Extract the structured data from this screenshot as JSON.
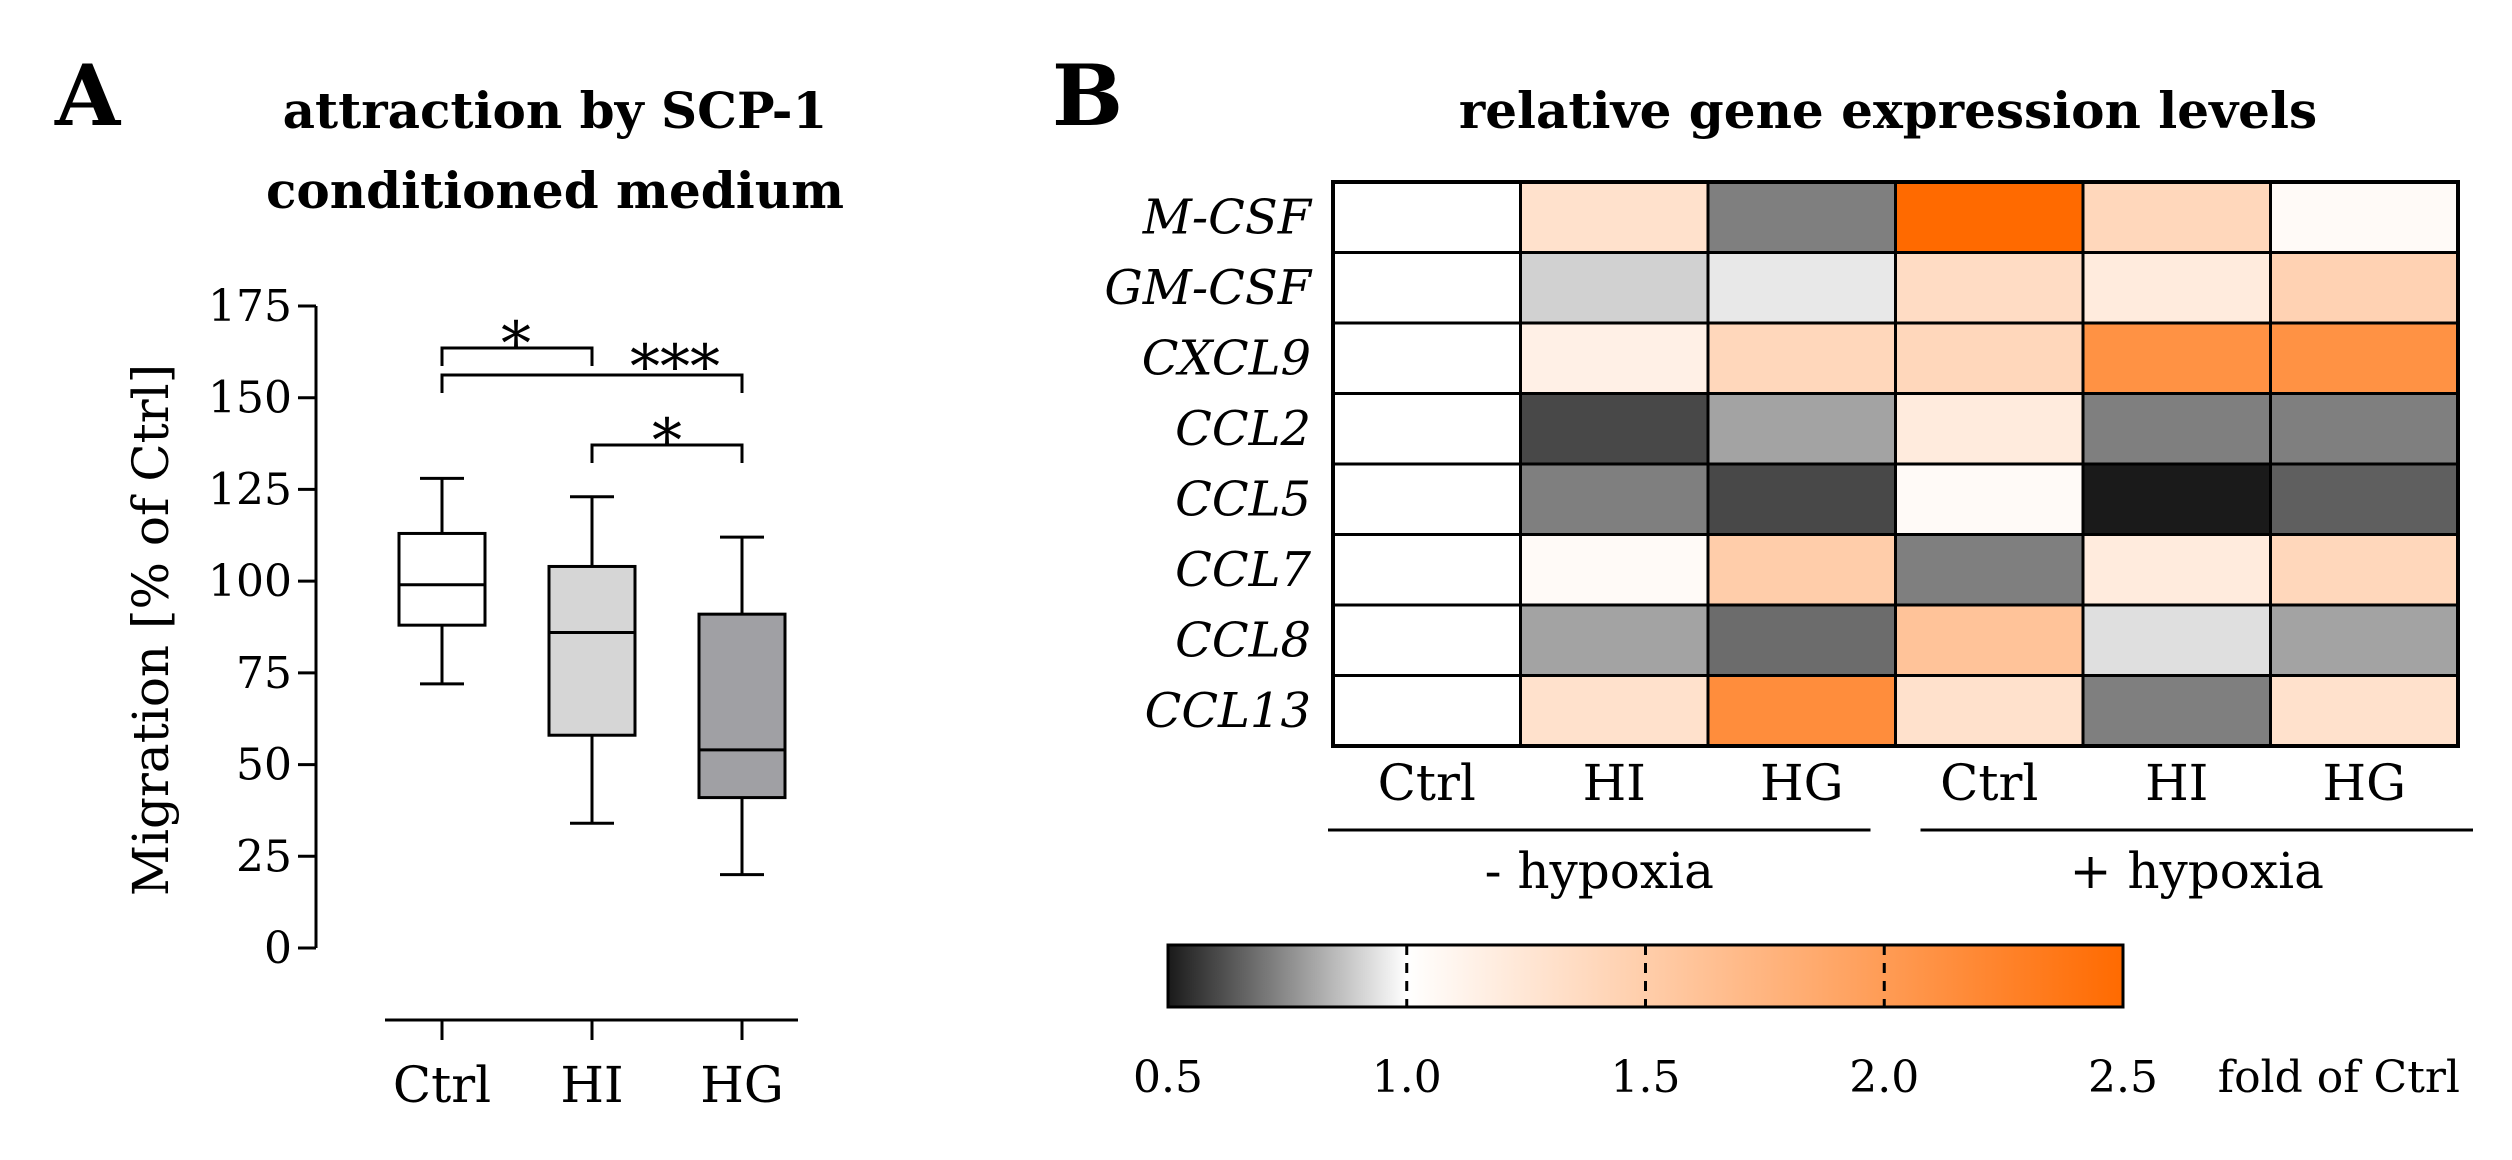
{
  "panel_a": {
    "letter": "A",
    "title_lines": [
      "attraction by SCP-1",
      "conditioned medium"
    ],
    "ylabel": "Migration [% of Ctrl]",
    "significance": [
      "*",
      "***",
      "*"
    ]
  },
  "panel_b": {
    "letter": "B",
    "title": "relative  gene expression levels",
    "groups": [
      "-  hypoxia",
      "+  hypoxia"
    ],
    "colorbar_unit": "fold of Ctrl",
    "colorbar_ticks": [
      "0.5",
      "1.0",
      "1.5",
      "2.0",
      "2.5"
    ]
  },
  "chart_data": [
    {
      "type": "box",
      "categories": [
        "Ctrl",
        "HI",
        "HG"
      ],
      "ylabel": "Migration [% of Ctrl]",
      "ylim": [
        0,
        175
      ],
      "yticks": [
        0,
        25,
        50,
        75,
        100,
        125,
        150,
        175
      ],
      "boxes": [
        {
          "category": "Ctrl",
          "min": 72,
          "q1": 88,
          "median": 99,
          "q3": 113,
          "max": 128,
          "color": "#ffffff"
        },
        {
          "category": "HI",
          "min": 34,
          "q1": 58,
          "median": 86,
          "q3": 104,
          "max": 123,
          "color": "#d6d6d6"
        },
        {
          "category": "HG",
          "min": 20,
          "q1": 41,
          "median": 54,
          "q3": 91,
          "max": 112,
          "color": "#a0a0a4"
        }
      ],
      "comparisons": [
        {
          "pair": [
            "Ctrl",
            "HI"
          ],
          "label": "*"
        },
        {
          "pair": [
            "Ctrl",
            "HG"
          ],
          "label": "***"
        },
        {
          "pair": [
            "HI",
            "HG"
          ],
          "label": "*"
        }
      ]
    },
    {
      "type": "heatmap",
      "title": "relative  gene expression levels",
      "rows": [
        "M-CSF",
        "GM-CSF",
        "CXCL9",
        "CCL2",
        "CCL5",
        "CCL7",
        "CCL8",
        "CCL13"
      ],
      "columns": [
        "Ctrl",
        "HI",
        "HG",
        "Ctrl",
        "HI",
        "HG"
      ],
      "column_groups": [
        {
          "label": "-  hypoxia",
          "columns": [
            0,
            1,
            2
          ]
        },
        {
          "label": "+  hypoxia",
          "columns": [
            3,
            4,
            5
          ]
        }
      ],
      "values": [
        [
          1.0,
          1.3,
          0.72,
          2.5,
          1.4,
          1.05
        ],
        [
          1.0,
          0.9,
          0.95,
          1.35,
          1.2,
          1.45
        ],
        [
          1.0,
          1.15,
          1.4,
          1.4,
          2.1,
          2.1
        ],
        [
          1.0,
          0.6,
          0.8,
          1.2,
          0.72,
          0.72
        ],
        [
          1.0,
          0.72,
          0.6,
          1.05,
          0.5,
          0.65
        ],
        [
          1.0,
          1.05,
          1.5,
          0.72,
          1.2,
          1.4
        ],
        [
          1.0,
          0.8,
          0.68,
          1.6,
          0.93,
          0.8
        ],
        [
          1.0,
          1.3,
          2.15,
          1.3,
          0.72,
          1.3
        ]
      ],
      "colorscale": {
        "min": 0.5,
        "max": 2.5,
        "center": 1.0,
        "low_color": "#1a1a1a",
        "mid_color": "#ffffff",
        "high_color": "#ff6a00"
      },
      "colorbar_label": "fold of Ctrl"
    }
  ]
}
